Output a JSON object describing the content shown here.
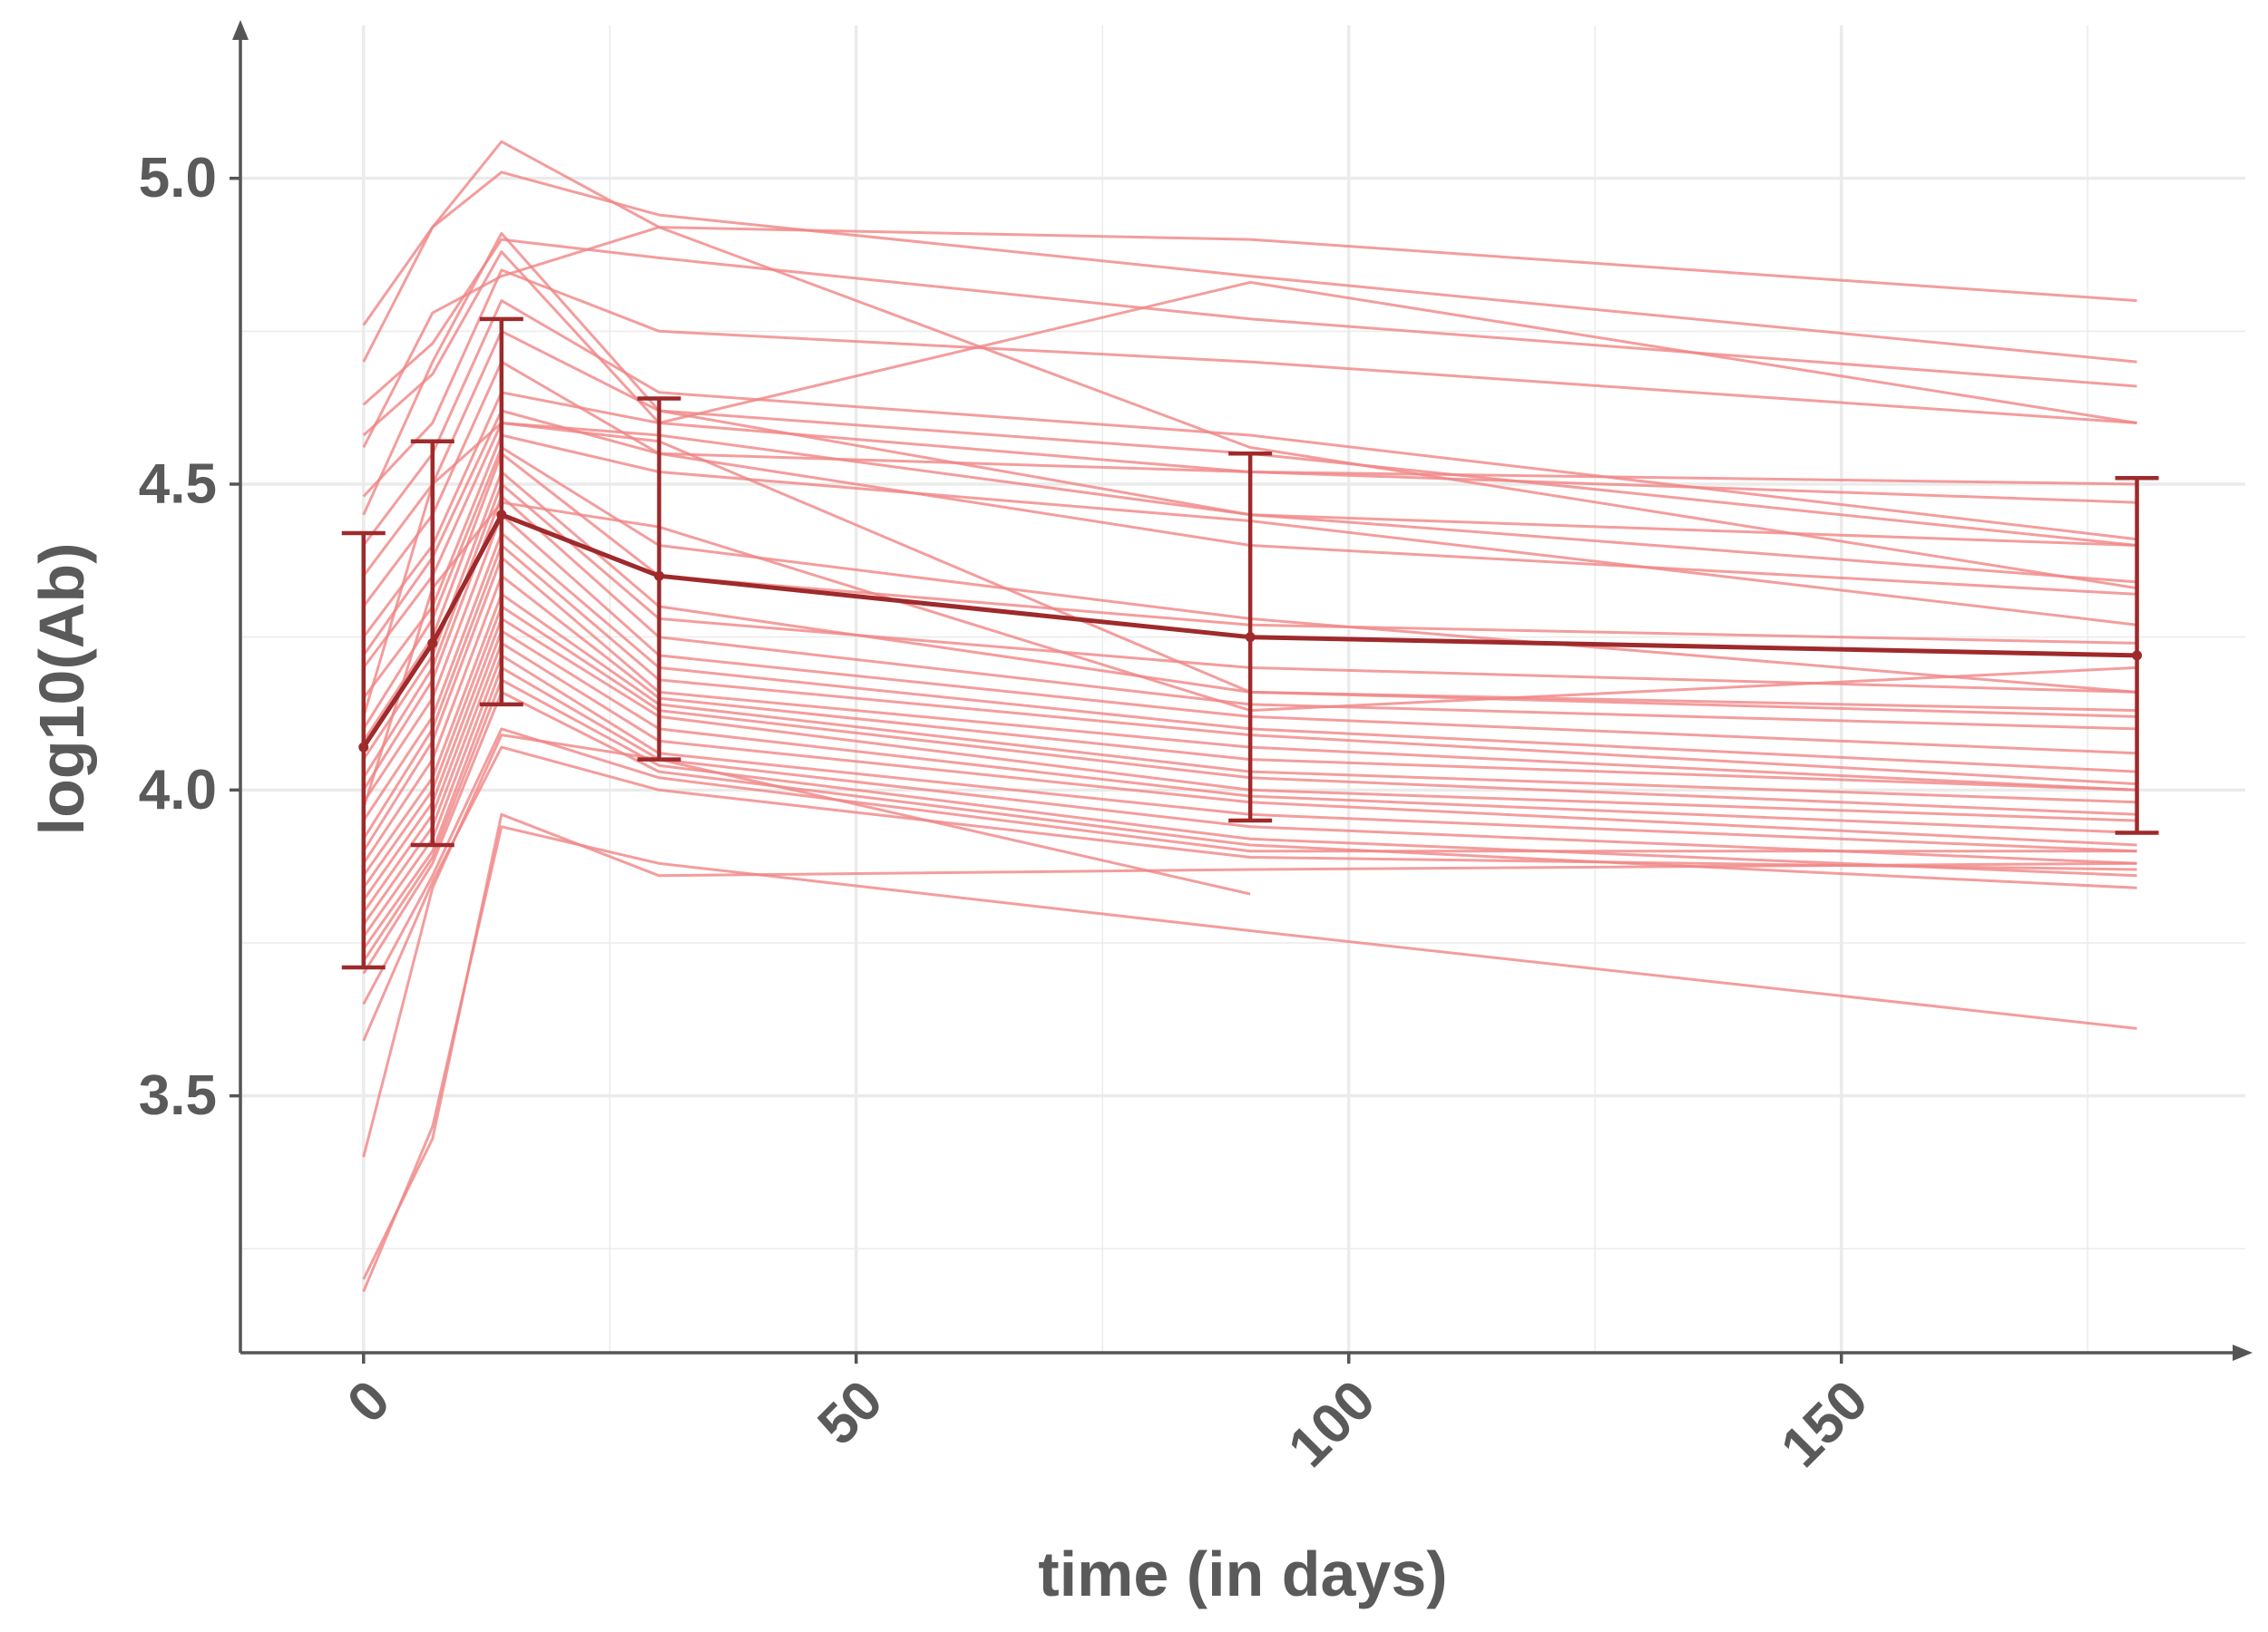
{
  "chart_data": {
    "type": "line",
    "xlabel": "time (in days)",
    "ylabel": "log10(Ab)",
    "xlim": [
      -12.5,
      191
    ],
    "ylim": [
      3.08,
      5.25
    ],
    "x_ticks": [
      0,
      50,
      100,
      150
    ],
    "y_ticks": [
      3.5,
      4.0,
      4.5,
      5.0
    ],
    "grid": true,
    "colors": {
      "individual": "#f08585",
      "mean": "#9e2a2b",
      "axis": "#555555",
      "grid": "#ebebeb",
      "text": "#5a5a5a"
    },
    "series": [
      {
        "role": "individual",
        "x": [
          0,
          7,
          14,
          30,
          90,
          180
        ],
        "y": [
          4.76,
          4.92,
          5.06,
          4.92,
          4.9,
          4.8
        ]
      },
      {
        "role": "individual",
        "x": [
          0,
          7,
          14,
          30,
          90,
          180
        ],
        "y": [
          4.7,
          4.92,
          5.01,
          4.94,
          4.84,
          4.7
        ]
      },
      {
        "role": "individual",
        "x": [
          0,
          7,
          14,
          30,
          90,
          180
        ],
        "y": [
          4.63,
          4.73,
          4.9,
          4.87,
          4.77,
          4.66
        ]
      },
      {
        "role": "individual",
        "x": [
          0,
          7,
          14,
          30,
          90,
          180
        ],
        "y": [
          4.58,
          4.68,
          4.88,
          4.6,
          4.83,
          4.6
        ]
      },
      {
        "role": "individual",
        "x": [
          0,
          7,
          14,
          30,
          90,
          180
        ],
        "y": [
          4.48,
          4.6,
          4.85,
          4.75,
          4.7,
          4.6
        ]
      },
      {
        "role": "individual",
        "x": [
          0,
          7,
          14,
          30,
          90,
          180
        ],
        "y": [
          4.4,
          4.55,
          4.8,
          4.65,
          4.58,
          4.41
        ]
      },
      {
        "role": "individual",
        "x": [
          0,
          7,
          14,
          30,
          90,
          180
        ],
        "y": [
          4.35,
          4.5,
          4.75,
          4.62,
          4.55,
          4.4
        ]
      },
      {
        "role": "individual",
        "x": [
          0,
          7,
          14,
          30,
          90,
          180
        ],
        "y": [
          4.3,
          4.45,
          4.7,
          4.55,
          4.52,
          4.5
        ]
      },
      {
        "role": "individual",
        "x": [
          0,
          7,
          14,
          30,
          90,
          180
        ],
        "y": [
          4.25,
          4.4,
          4.65,
          4.6,
          4.52,
          4.47
        ]
      },
      {
        "role": "individual",
        "x": [
          0,
          7,
          14,
          30,
          90,
          180
        ],
        "y": [
          4.22,
          4.38,
          4.62,
          4.55,
          4.4,
          4.32
        ]
      },
      {
        "role": "individual",
        "x": [
          0,
          7,
          14,
          30,
          90,
          180
        ],
        "y": [
          4.2,
          4.35,
          4.6,
          4.58,
          4.45,
          4.34
        ]
      },
      {
        "role": "individual",
        "x": [
          0,
          7,
          14,
          30,
          90,
          180
        ],
        "y": [
          4.15,
          4.3,
          4.58,
          4.52,
          4.44,
          4.27
        ]
      },
      {
        "role": "individual",
        "x": [
          0,
          7,
          14,
          30,
          90,
          180
        ],
        "y": [
          4.1,
          4.28,
          4.56,
          4.4,
          4.28,
          4.16
        ]
      },
      {
        "role": "individual",
        "x": [
          0,
          7,
          14,
          30,
          90,
          180
        ],
        "y": [
          4.08,
          4.25,
          4.55,
          4.35,
          4.27,
          4.24
        ]
      },
      {
        "role": "individual",
        "x": [
          0,
          7,
          14,
          30,
          90,
          180
        ],
        "y": [
          4.05,
          4.22,
          4.52,
          4.3,
          4.16,
          4.12
        ]
      },
      {
        "role": "individual",
        "x": [
          0,
          7,
          14,
          30,
          90,
          180
        ],
        "y": [
          4.02,
          4.2,
          4.5,
          4.28,
          4.2,
          4.16
        ]
      },
      {
        "role": "individual",
        "x": [
          0,
          7,
          14,
          30,
          90,
          180
        ],
        "y": [
          4.0,
          4.18,
          4.48,
          4.25,
          4.14,
          4.1
        ]
      },
      {
        "role": "individual",
        "x": [
          0,
          7,
          14,
          30,
          90,
          180
        ],
        "y": [
          3.98,
          4.15,
          4.45,
          4.22,
          4.12,
          4.06
        ]
      },
      {
        "role": "individual",
        "x": [
          0,
          7,
          14,
          30,
          90,
          180
        ],
        "y": [
          3.95,
          4.12,
          4.42,
          4.2,
          4.1,
          4.03
        ]
      },
      {
        "role": "individual",
        "x": [
          0,
          7,
          14,
          30,
          90,
          180
        ],
        "y": [
          3.92,
          4.1,
          4.4,
          4.18,
          4.09,
          4.01
        ]
      },
      {
        "role": "individual",
        "x": [
          0,
          7,
          14,
          30,
          90,
          180
        ],
        "y": [
          3.9,
          4.08,
          4.38,
          4.16,
          4.07,
          4.0
        ]
      },
      {
        "role": "individual",
        "x": [
          0,
          7,
          14,
          30,
          90,
          180
        ],
        "y": [
          3.88,
          4.05,
          4.35,
          4.15,
          4.05,
          4.0
        ]
      },
      {
        "role": "individual",
        "x": [
          0,
          7,
          14,
          30,
          90,
          180
        ],
        "y": [
          3.86,
          4.02,
          4.32,
          4.14,
          4.03,
          3.98
        ]
      },
      {
        "role": "individual",
        "x": [
          0,
          7,
          14,
          30,
          90,
          180
        ],
        "y": [
          3.84,
          4.0,
          4.3,
          4.13,
          4.02,
          3.96
        ]
      },
      {
        "role": "individual",
        "x": [
          0,
          7,
          14,
          30,
          90,
          180
        ],
        "y": [
          3.82,
          3.98,
          4.28,
          4.12,
          4.0,
          3.95
        ]
      },
      {
        "role": "individual",
        "x": [
          0,
          7,
          14,
          30,
          90,
          180
        ],
        "y": [
          3.8,
          3.96,
          4.26,
          4.1,
          3.99,
          3.93
        ]
      },
      {
        "role": "individual",
        "x": [
          0,
          7,
          14,
          30,
          90,
          180
        ],
        "y": [
          3.78,
          3.94,
          4.24,
          4.08,
          3.98,
          3.91
        ]
      },
      {
        "role": "individual",
        "x": [
          0,
          7,
          14,
          30,
          90,
          180
        ],
        "y": [
          3.76,
          3.92,
          4.22,
          4.06,
          3.96,
          3.9
        ]
      },
      {
        "role": "individual",
        "x": [
          0,
          7,
          14,
          30,
          90,
          180
        ],
        "y": [
          3.74,
          3.9,
          4.2,
          4.05,
          3.94,
          3.88
        ]
      },
      {
        "role": "individual",
        "x": [
          0,
          7,
          14,
          30,
          90,
          180
        ],
        "y": [
          3.72,
          3.89,
          4.18,
          4.04,
          3.92,
          3.86
        ]
      },
      {
        "role": "individual",
        "x": [
          0,
          7,
          14,
          30,
          90,
          180
        ],
        "y": [
          3.7,
          3.88,
          4.16,
          4.03,
          3.91,
          3.84
        ]
      },
      {
        "role": "individual",
        "x": [
          0,
          7,
          14,
          30,
          90,
          180
        ],
        "y": [
          3.65,
          3.86,
          4.1,
          4.02,
          3.9,
          3.9
        ]
      },
      {
        "role": "individual",
        "x": [
          0,
          7,
          14,
          30,
          90,
          180
        ],
        "y": [
          3.59,
          3.85,
          4.07,
          4.0,
          3.89,
          3.87
        ]
      },
      {
        "role": "individual",
        "x": [
          0,
          7,
          14,
          30,
          90
        ],
        "y": [
          3.4,
          3.84,
          4.09,
          4.05,
          3.83
        ]
      },
      {
        "role": "individual",
        "x": [
          0,
          7,
          14,
          30,
          90,
          180
        ],
        "y": [
          3.2,
          3.43,
          3.96,
          3.86,
          3.87,
          3.88
        ]
      },
      {
        "role": "individual",
        "x": [
          0,
          7,
          14,
          30,
          90,
          180
        ],
        "y": [
          3.18,
          3.45,
          3.94,
          3.88,
          3.77,
          3.61
        ]
      },
      {
        "role": "individual",
        "x": [
          0,
          7,
          14,
          30,
          90,
          180
        ],
        "y": [
          4.56,
          4.78,
          4.84,
          4.92,
          4.56,
          4.33
        ]
      },
      {
        "role": "individual",
        "x": [
          0,
          7,
          14,
          30,
          90,
          180
        ],
        "y": [
          4.45,
          4.7,
          4.91,
          4.62,
          4.45,
          4.4
        ]
      },
      {
        "role": "individual",
        "x": [
          0,
          7,
          14,
          30,
          90,
          180
        ],
        "y": [
          4.12,
          4.5,
          4.6,
          4.57,
          4.16,
          4.13
        ]
      },
      {
        "role": "individual",
        "x": [
          0,
          7,
          14,
          30,
          90,
          180
        ],
        "y": [
          3.97,
          4.33,
          4.47,
          4.43,
          4.13,
          4.2
        ]
      },
      {
        "role": "mean",
        "x": [
          0,
          7,
          14,
          30,
          90,
          180
        ],
        "y": [
          4.07,
          4.24,
          4.45,
          4.35,
          4.25,
          4.22
        ],
        "err_low": [
          3.71,
          3.91,
          4.14,
          4.05,
          3.95,
          3.93
        ],
        "err_high": [
          4.42,
          4.57,
          4.77,
          4.64,
          4.55,
          4.51
        ]
      }
    ]
  }
}
